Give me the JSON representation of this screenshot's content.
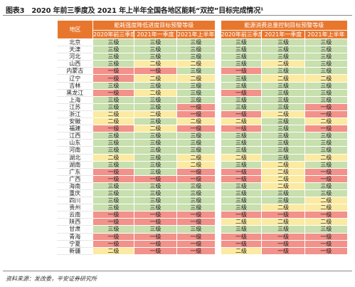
{
  "figure": {
    "label": "图表3",
    "title": "2020 年前三季度及 2021 年上半年全国各地区能耗“双控”目标完成情况¹"
  },
  "table": {
    "region_header": "地区",
    "group1_header": "能耗强度降低进度目标预警等级",
    "group2_header": "能源消费总量控制目标预警等级",
    "sub_headers": [
      "2020年前三季度",
      "2021年一季度",
      "2021年上半年",
      "2020年前三季度",
      "2021年一季度",
      "2021年上半年"
    ],
    "legend_colors": {
      "1": "#c8dfae",
      "2": "#fbeaa1",
      "3": "#f2928a"
    },
    "level_labels": {
      "1": "三级",
      "2": "二级",
      "3": "一级"
    },
    "rows": [
      {
        "region": "北京",
        "levels": [
          1,
          1,
          1,
          1,
          1,
          1
        ]
      },
      {
        "region": "天津",
        "levels": [
          1,
          1,
          1,
          1,
          1,
          1
        ]
      },
      {
        "region": "河北",
        "levels": [
          1,
          1,
          1,
          1,
          1,
          1
        ]
      },
      {
        "region": "山西",
        "levels": [
          1,
          2,
          2,
          1,
          2,
          1
        ]
      },
      {
        "region": "内蒙古",
        "levels": [
          3,
          3,
          1,
          3,
          1,
          1
        ]
      },
      {
        "region": "辽宁",
        "levels": [
          3,
          2,
          2,
          1,
          2,
          2
        ]
      },
      {
        "region": "吉林",
        "levels": [
          1,
          1,
          1,
          1,
          1,
          1
        ]
      },
      {
        "region": "黑龙江",
        "levels": [
          3,
          2,
          1,
          3,
          1,
          1
        ]
      },
      {
        "region": "上海",
        "levels": [
          1,
          1,
          1,
          1,
          1,
          1
        ]
      },
      {
        "region": "江苏",
        "levels": [
          1,
          1,
          3,
          1,
          1,
          3
        ]
      },
      {
        "region": "浙江",
        "levels": [
          2,
          2,
          3,
          3,
          2,
          3
        ]
      },
      {
        "region": "安徽",
        "levels": [
          2,
          1,
          2,
          2,
          1,
          2
        ]
      },
      {
        "region": "福建",
        "levels": [
          3,
          2,
          3,
          3,
          1,
          3
        ]
      },
      {
        "region": "江西",
        "levels": [
          1,
          1,
          1,
          1,
          1,
          1
        ]
      },
      {
        "region": "山东",
        "levels": [
          1,
          1,
          1,
          1,
          1,
          1
        ]
      },
      {
        "region": "河南",
        "levels": [
          1,
          1,
          1,
          1,
          1,
          1
        ]
      },
      {
        "region": "湖北",
        "levels": [
          2,
          1,
          2,
          2,
          1,
          2
        ]
      },
      {
        "region": "湖南",
        "levels": [
          1,
          1,
          2,
          1,
          2,
          1
        ]
      },
      {
        "region": "广东",
        "levels": [
          3,
          1,
          3,
          3,
          2,
          3
        ]
      },
      {
        "region": "广西",
        "levels": [
          3,
          3,
          3,
          3,
          2,
          3
        ]
      },
      {
        "region": "海南",
        "levels": [
          1,
          1,
          1,
          1,
          2,
          1
        ]
      },
      {
        "region": "重庆",
        "levels": [
          1,
          1,
          1,
          1,
          1,
          1
        ]
      },
      {
        "region": "四川",
        "levels": [
          1,
          1,
          1,
          1,
          1,
          2
        ]
      },
      {
        "region": "贵州",
        "levels": [
          1,
          1,
          1,
          1,
          2,
          2
        ]
      },
      {
        "region": "云南",
        "levels": [
          3,
          3,
          3,
          3,
          3,
          3
        ]
      },
      {
        "region": "陕西",
        "levels": [
          3,
          3,
          3,
          2,
          2,
          2
        ]
      },
      {
        "region": "甘肃",
        "levels": [
          1,
          1,
          1,
          1,
          1,
          1
        ]
      },
      {
        "region": "青海",
        "levels": [
          3,
          3,
          3,
          3,
          3,
          3
        ]
      },
      {
        "region": "宁夏",
        "levels": [
          3,
          3,
          3,
          3,
          3,
          3
        ]
      },
      {
        "region": "新疆",
        "levels": [
          2,
          3,
          3,
          2,
          3,
          3
        ]
      }
    ]
  },
  "source": "资料来源：发改委，平安证券研究所"
}
